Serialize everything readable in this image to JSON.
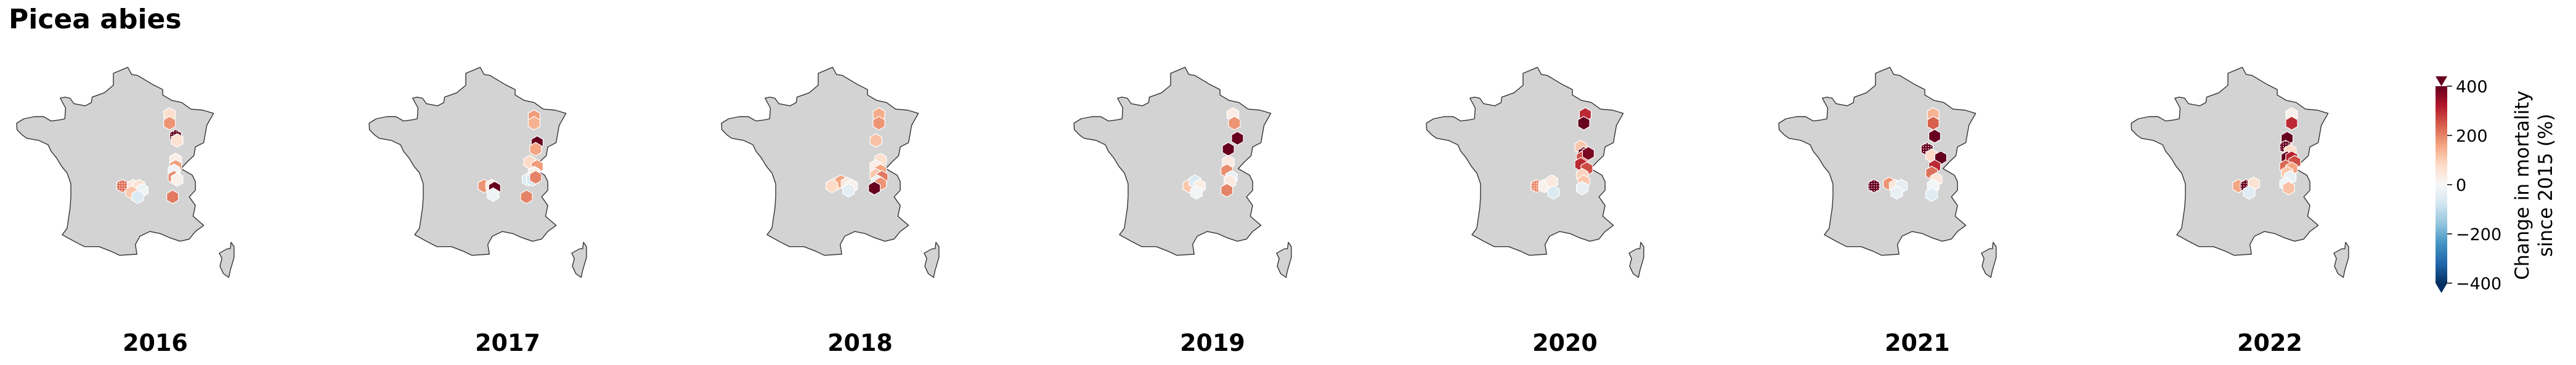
{
  "title": "Picea abies",
  "colorbar": {
    "label_line1": "Change in mortality",
    "label_line2": "since 2015 (%)",
    "ticks": [
      400,
      200,
      0,
      -200,
      -400
    ],
    "tick_labels": [
      "400",
      "200",
      "0",
      "−200",
      "−400"
    ],
    "range": [
      -400,
      400
    ],
    "colormap": "RdBu_r",
    "extend": "both"
  },
  "colors": {
    "land": "#d3d3d3",
    "coast": "#333333",
    "hex_edge": "#ffffff",
    "text": "#000000"
  },
  "chart_data": {
    "type": "map",
    "panel_order": [
      "2016",
      "2017",
      "2018",
      "2019",
      "2020",
      "2021",
      "2022"
    ],
    "value_units": "% change in mortality since 2015",
    "cell_coords": "lon, lat (degrees)",
    "significance": "hatched hexagons",
    "panels": [
      {
        "year": "2016",
        "cells": [
          {
            "lon": 5.3,
            "lat": 48.9,
            "value": 70
          },
          {
            "lon": 5.3,
            "lat": 48.5,
            "value": 180
          },
          {
            "lon": 5.7,
            "lat": 47.9,
            "value": 420,
            "sig": true
          },
          {
            "lon": 5.8,
            "lat": 47.7,
            "value": 60
          },
          {
            "lon": 5.7,
            "lat": 46.8,
            "value": 30
          },
          {
            "lon": 5.7,
            "lat": 46.5,
            "value": 170
          },
          {
            "lon": 5.6,
            "lat": 46.3,
            "value": -20
          },
          {
            "lon": 5.6,
            "lat": 46.0,
            "value": 190
          },
          {
            "lon": 5.8,
            "lat": 45.9,
            "value": 20
          },
          {
            "lon": 2.2,
            "lat": 45.6,
            "value": 220,
            "sig": true
          },
          {
            "lon": 2.9,
            "lat": 45.6,
            "value": 40
          },
          {
            "lon": 3.3,
            "lat": 45.6,
            "value": 60
          },
          {
            "lon": 3.5,
            "lat": 45.4,
            "value": -20
          },
          {
            "lon": 2.8,
            "lat": 45.3,
            "value": 110
          },
          {
            "lon": 3.2,
            "lat": 45.1,
            "value": -60
          },
          {
            "lon": 5.5,
            "lat": 45.1,
            "value": 210
          }
        ]
      },
      {
        "year": "2017",
        "cells": [
          {
            "lon": 6.1,
            "lat": 48.8,
            "value": 170
          },
          {
            "lon": 6.1,
            "lat": 48.5,
            "value": 140
          },
          {
            "lon": 6.3,
            "lat": 47.6,
            "value": 500
          },
          {
            "lon": 6.2,
            "lat": 47.3,
            "value": 160
          },
          {
            "lon": 5.8,
            "lat": 46.7,
            "value": 80
          },
          {
            "lon": 6.3,
            "lat": 46.5,
            "value": 170
          },
          {
            "lon": 6.1,
            "lat": 46.2,
            "value": 20
          },
          {
            "lon": 5.7,
            "lat": 45.9,
            "value": -50
          },
          {
            "lon": 6.0,
            "lat": 45.9,
            "value": -70
          },
          {
            "lon": 6.2,
            "lat": 46.0,
            "value": 200
          },
          {
            "lon": 2.8,
            "lat": 45.6,
            "value": 180
          },
          {
            "lon": 3.3,
            "lat": 45.6,
            "value": 30
          },
          {
            "lon": 3.5,
            "lat": 45.5,
            "value": 480
          },
          {
            "lon": 3.4,
            "lat": 45.2,
            "value": -20
          },
          {
            "lon": 5.6,
            "lat": 45.1,
            "value": 200
          }
        ]
      },
      {
        "year": "2018",
        "cells": [
          {
            "lon": 5.6,
            "lat": 48.9,
            "value": 150
          },
          {
            "lon": 5.6,
            "lat": 48.5,
            "value": 180
          },
          {
            "lon": 5.4,
            "lat": 47.7,
            "value": 120
          },
          {
            "lon": 5.7,
            "lat": 46.8,
            "value": 70
          },
          {
            "lon": 5.4,
            "lat": 46.5,
            "value": 30
          },
          {
            "lon": 5.7,
            "lat": 46.3,
            "value": 160
          },
          {
            "lon": 5.4,
            "lat": 46.1,
            "value": 110
          },
          {
            "lon": 5.8,
            "lat": 46.0,
            "value": 210
          },
          {
            "lon": 5.5,
            "lat": 45.8,
            "value": -30
          },
          {
            "lon": 5.7,
            "lat": 45.7,
            "value": 180
          },
          {
            "lon": 5.3,
            "lat": 45.5,
            "value": 430
          },
          {
            "lon": 2.8,
            "lat": 45.7,
            "value": 120
          },
          {
            "lon": 3.1,
            "lat": 45.8,
            "value": 160
          },
          {
            "lon": 3.5,
            "lat": 45.7,
            "value": 40
          },
          {
            "lon": 3.8,
            "lat": 45.6,
            "value": 20
          },
          {
            "lon": 3.6,
            "lat": 45.4,
            "value": -40
          },
          {
            "lon": 2.5,
            "lat": 45.6,
            "value": 80
          }
        ]
      },
      {
        "year": "2019",
        "cells": [
          {
            "lon": 5.7,
            "lat": 48.9,
            "value": 30
          },
          {
            "lon": 5.8,
            "lat": 48.5,
            "value": 180
          },
          {
            "lon": 6.0,
            "lat": 47.8,
            "value": 480
          },
          {
            "lon": 5.4,
            "lat": 47.3,
            "value": 500
          },
          {
            "lon": 5.4,
            "lat": 46.7,
            "value": 40
          },
          {
            "lon": 5.3,
            "lat": 46.3,
            "value": 190
          },
          {
            "lon": 5.6,
            "lat": 46.0,
            "value": -30
          },
          {
            "lon": 5.5,
            "lat": 45.8,
            "value": 40
          },
          {
            "lon": 5.3,
            "lat": 45.4,
            "value": 200
          },
          {
            "lon": 2.8,
            "lat": 45.6,
            "value": 110
          },
          {
            "lon": 3.2,
            "lat": 45.8,
            "value": -60
          },
          {
            "lon": 3.5,
            "lat": 45.6,
            "value": 30
          },
          {
            "lon": 3.3,
            "lat": 45.3,
            "value": -10
          }
        ]
      },
      {
        "year": "2020",
        "cells": [
          {
            "lon": 5.7,
            "lat": 48.9,
            "value": 300
          },
          {
            "lon": 5.6,
            "lat": 48.5,
            "value": 480
          },
          {
            "lon": 5.4,
            "lat": 47.4,
            "value": 110
          },
          {
            "lon": 5.6,
            "lat": 47.1,
            "value": 420,
            "sig": true
          },
          {
            "lon": 5.5,
            "lat": 46.9,
            "value": 260
          },
          {
            "lon": 5.9,
            "lat": 47.1,
            "value": 380
          },
          {
            "lon": 5.4,
            "lat": 46.6,
            "value": 300
          },
          {
            "lon": 5.8,
            "lat": 46.4,
            "value": 260
          },
          {
            "lon": 5.5,
            "lat": 46.1,
            "value": 90
          },
          {
            "lon": 5.6,
            "lat": 45.8,
            "value": 110
          },
          {
            "lon": 5.5,
            "lat": 45.5,
            "value": -30
          },
          {
            "lon": 2.5,
            "lat": 45.6,
            "value": 190,
            "sig": true
          },
          {
            "lon": 3.0,
            "lat": 45.6,
            "value": 20
          },
          {
            "lon": 3.5,
            "lat": 45.8,
            "value": 40
          },
          {
            "lon": 3.6,
            "lat": 45.3,
            "value": -60
          }
        ]
      },
      {
        "year": "2021",
        "cells": [
          {
            "lon": 5.4,
            "lat": 48.9,
            "value": 140
          },
          {
            "lon": 5.4,
            "lat": 48.5,
            "value": 240
          },
          {
            "lon": 5.5,
            "lat": 47.9,
            "value": 500
          },
          {
            "lon": 5.0,
            "lat": 47.3,
            "value": 480,
            "sig": true
          },
          {
            "lon": 5.3,
            "lat": 47.0,
            "value": 80
          },
          {
            "lon": 5.9,
            "lat": 46.9,
            "value": 490
          },
          {
            "lon": 5.5,
            "lat": 46.5,
            "value": 300
          },
          {
            "lon": 5.3,
            "lat": 46.2,
            "value": 220
          },
          {
            "lon": 5.6,
            "lat": 45.9,
            "value": 50
          },
          {
            "lon": 5.4,
            "lat": 45.6,
            "value": -10
          },
          {
            "lon": 5.3,
            "lat": 45.2,
            "value": -50
          },
          {
            "lon": 1.5,
            "lat": 45.6,
            "value": 480,
            "sig": true
          },
          {
            "lon": 2.5,
            "lat": 45.7,
            "value": 180
          },
          {
            "lon": 2.9,
            "lat": 45.6,
            "value": 50
          },
          {
            "lon": 3.3,
            "lat": 45.6,
            "value": -40
          },
          {
            "lon": 3.0,
            "lat": 45.3,
            "value": -30
          }
        ]
      },
      {
        "year": "2022",
        "cells": [
          {
            "lon": 5.8,
            "lat": 48.9,
            "value": 20
          },
          {
            "lon": 5.8,
            "lat": 48.5,
            "value": 300
          },
          {
            "lon": 5.5,
            "lat": 47.8,
            "value": 470
          },
          {
            "lon": 5.4,
            "lat": 47.4,
            "value": 440,
            "sig": true
          },
          {
            "lon": 5.7,
            "lat": 47.2,
            "value": 80
          },
          {
            "lon": 5.5,
            "lat": 46.9,
            "value": 500
          },
          {
            "lon": 5.8,
            "lat": 46.9,
            "value": 310
          },
          {
            "lon": 6.0,
            "lat": 46.7,
            "value": 260
          },
          {
            "lon": 5.4,
            "lat": 46.5,
            "value": 230
          },
          {
            "lon": 5.8,
            "lat": 46.4,
            "value": 160
          },
          {
            "lon": 5.5,
            "lat": 46.2,
            "value": 110
          },
          {
            "lon": 5.7,
            "lat": 46.0,
            "value": -30
          },
          {
            "lon": 5.4,
            "lat": 45.7,
            "value": -20
          },
          {
            "lon": 5.6,
            "lat": 45.5,
            "value": 120
          },
          {
            "lon": 2.3,
            "lat": 45.6,
            "value": 160
          },
          {
            "lon": 2.8,
            "lat": 45.6,
            "value": 400,
            "sig": true
          },
          {
            "lon": 3.3,
            "lat": 45.7,
            "value": 60
          },
          {
            "lon": 3.0,
            "lat": 45.3,
            "value": -50
          }
        ]
      }
    ]
  }
}
